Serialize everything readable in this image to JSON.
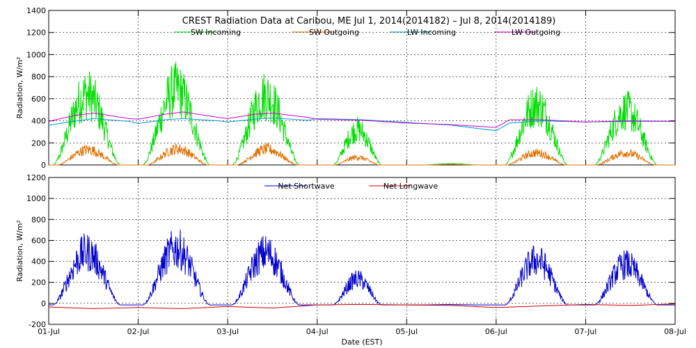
{
  "chart_data": [
    {
      "type": "line",
      "title": "CREST Radiation Data at Caribou, ME   Jul  1, 2014(2014182) – Jul  8, 2014(2014189)",
      "ylabel": "Radiation, W/m²",
      "xlabel": "",
      "ylim": [
        0,
        1400
      ],
      "yticks": [
        "0",
        "200",
        "400",
        "600",
        "800",
        "1000",
        "1200",
        "1400"
      ],
      "xlim": [
        0,
        7
      ],
      "grid": true,
      "legend_position": "top",
      "series": [
        {
          "name": "SW Incoming",
          "color": "#00dd00",
          "days": [
            {
              "start": 0.05,
              "end": 0.8,
              "peak": 880
            },
            {
              "start": 1.05,
              "end": 1.8,
              "peak": 940
            },
            {
              "start": 2.05,
              "end": 2.8,
              "peak": 870
            },
            {
              "start": 3.18,
              "end": 3.72,
              "peak": 440
            },
            {
              "start": 4.2,
              "end": 4.8,
              "peak": 15
            },
            {
              "start": 5.1,
              "end": 5.8,
              "peak": 750
            },
            {
              "start": 6.1,
              "end": 6.8,
              "peak": 680
            }
          ]
        },
        {
          "name": "SW Outgoing",
          "color": "#e07000",
          "days": [
            {
              "start": 0.1,
              "end": 0.78,
              "peak": 190
            },
            {
              "start": 1.1,
              "end": 1.78,
              "peak": 200
            },
            {
              "start": 2.1,
              "end": 2.78,
              "peak": 195
            },
            {
              "start": 3.2,
              "end": 3.7,
              "peak": 95
            },
            {
              "start": 4.25,
              "end": 4.75,
              "peak": 8
            },
            {
              "start": 5.12,
              "end": 5.78,
              "peak": 150
            },
            {
              "start": 6.12,
              "end": 6.78,
              "peak": 150
            }
          ]
        },
        {
          "name": "LW Incoming",
          "color": "#0099cc",
          "x": [
            0,
            0.2,
            0.5,
            0.9,
            1.0,
            1.3,
            1.5,
            1.9,
            2.0,
            2.3,
            2.5,
            2.9,
            3.0,
            3.5,
            4.0,
            4.5,
            5.0,
            5.15,
            5.5,
            6.0,
            6.5,
            7.0
          ],
          "y": [
            360,
            385,
            420,
            395,
            375,
            410,
            420,
            400,
            390,
            415,
            425,
            405,
            420,
            410,
            385,
            360,
            310,
            380,
            400,
            390,
            395,
            395
          ]
        },
        {
          "name": "LW Outgoing",
          "color": "#cc00cc",
          "x": [
            0,
            0.3,
            0.5,
            0.9,
            1.0,
            1.3,
            1.5,
            1.9,
            2.0,
            2.3,
            2.5,
            2.9,
            3.0,
            3.5,
            4.0,
            4.5,
            5.0,
            5.15,
            5.5,
            6.0,
            6.5,
            7.0
          ],
          "y": [
            395,
            450,
            470,
            420,
            415,
            460,
            480,
            430,
            420,
            460,
            470,
            430,
            415,
            405,
            380,
            365,
            340,
            410,
            410,
            390,
            400,
            395
          ]
        }
      ]
    },
    {
      "type": "line",
      "ylabel": "Radiation, W/m²",
      "xlabel": "Date (EST)",
      "ylim": [
        -200,
        1200
      ],
      "yticks": [
        "-200",
        "0",
        "200",
        "400",
        "600",
        "800",
        "1000",
        "1200"
      ],
      "xlim": [
        0,
        7
      ],
      "categories": [
        "01-Jul",
        "02-Jul",
        "03-Jul",
        "04-Jul",
        "05-Jul",
        "06-Jul",
        "07-Jul",
        "08-Jul"
      ],
      "grid": true,
      "legend_position": "top",
      "series": [
        {
          "name": "Net Shortwave",
          "color": "#0000cc",
          "base": -15,
          "days": [
            {
              "start": 0.05,
              "end": 0.8,
              "peak": 690
            },
            {
              "start": 1.05,
              "end": 1.8,
              "peak": 740
            },
            {
              "start": 2.05,
              "end": 2.8,
              "peak": 680
            },
            {
              "start": 3.18,
              "end": 3.72,
              "peak": 340
            },
            {
              "start": 4.2,
              "end": 4.8,
              "peak": 5
            },
            {
              "start": 5.1,
              "end": 5.8,
              "peak": 590
            },
            {
              "start": 6.1,
              "end": 6.8,
              "peak": 530
            }
          ]
        },
        {
          "name": "Net Longwave",
          "color": "#cc0000",
          "x": [
            0,
            0.5,
            1.0,
            1.5,
            2.0,
            2.5,
            3.0,
            3.5,
            4.0,
            4.5,
            5.0,
            5.5,
            6.0,
            6.5,
            7.0
          ],
          "y": [
            -35,
            -50,
            -40,
            -50,
            -30,
            -45,
            -15,
            -10,
            -15,
            -20,
            -40,
            -25,
            -10,
            -20,
            -5
          ]
        }
      ]
    }
  ]
}
